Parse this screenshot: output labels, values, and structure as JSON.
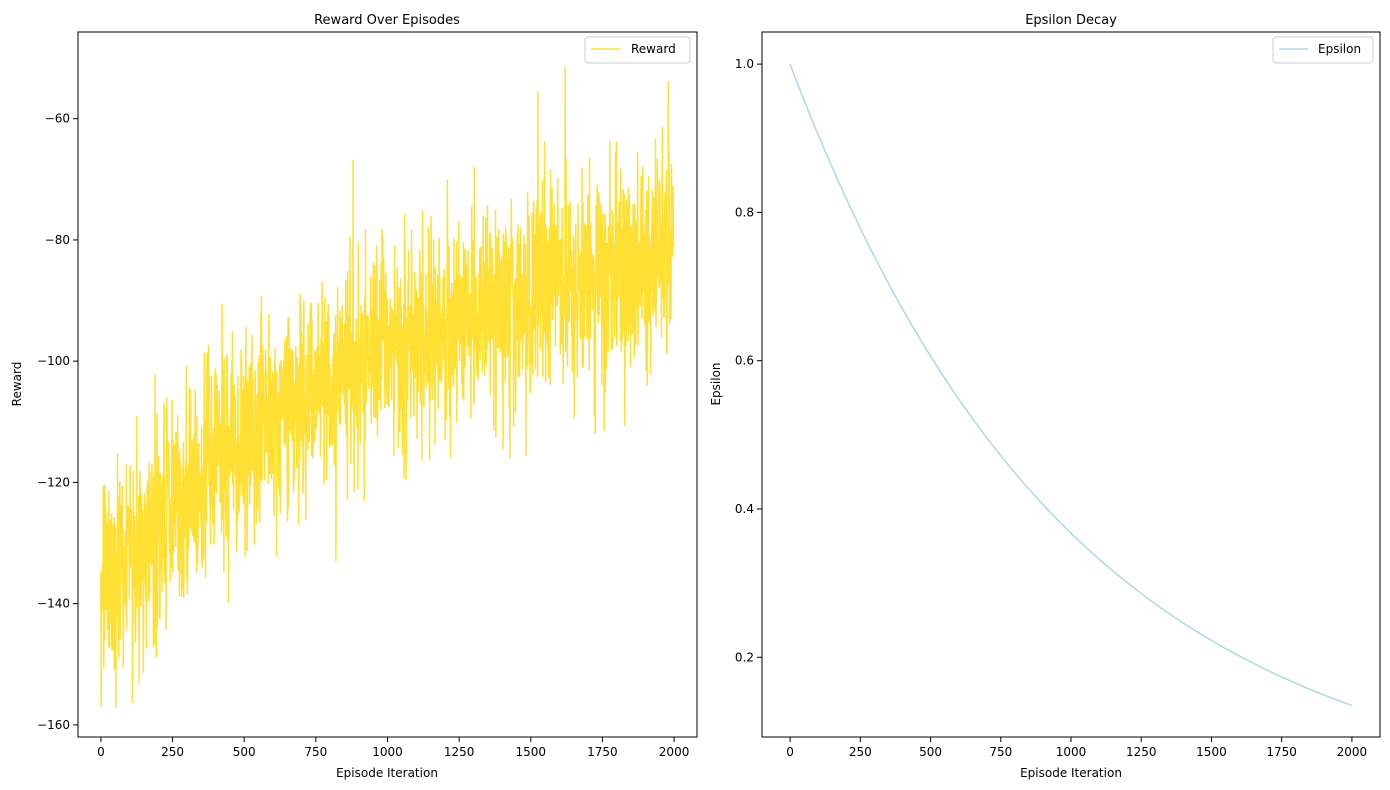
{
  "chart_data": [
    {
      "type": "line",
      "title": "Reward Over Episodes",
      "xlabel": "Episode Iteration",
      "ylabel": "Reward",
      "xlim": [
        -80,
        2080
      ],
      "ylim": [
        -162,
        -45.7
      ],
      "xticks": [
        0,
        250,
        500,
        750,
        1000,
        1250,
        1500,
        1750,
        2000
      ],
      "yticks": [
        -160,
        -140,
        -120,
        -100,
        -80,
        -60
      ],
      "ytick_labels": [
        "−160",
        "−140",
        "−120",
        "−100",
        "−80",
        "−60"
      ],
      "legend_position": "top-right",
      "grid": false,
      "series": [
        {
          "name": "Reward",
          "color": "#FFD700",
          "trend": {
            "x": [
              0,
              250,
              500,
              750,
              1000,
              1250,
              1500,
              1750,
              2000
            ],
            "y": [
              -138,
              -124,
              -113,
              -105,
              -98,
              -93,
              -89,
              -85,
              -83
            ]
          },
          "noise_std": 8.5,
          "n_points": 2000,
          "notable_points": [
            {
              "x": 8,
              "y": -120.5
            },
            {
              "x": 110,
              "y": -156.3
            },
            {
              "x": 125,
              "y": -109
            },
            {
              "x": 820,
              "y": -133
            },
            {
              "x": 1525,
              "y": -55.5
            },
            {
              "x": 1620,
              "y": -51.5
            },
            {
              "x": 1980,
              "y": -53.8
            }
          ]
        }
      ]
    },
    {
      "type": "line",
      "title": "Epsilon Decay",
      "xlabel": "Episode Iteration",
      "ylabel": "Epsilon",
      "xlim": [
        -100,
        2100
      ],
      "ylim": [
        0.0925,
        1.0433
      ],
      "xticks": [
        0,
        250,
        500,
        750,
        1000,
        1250,
        1500,
        1750,
        2000
      ],
      "yticks": [
        0.2,
        0.4,
        0.6,
        0.8,
        1.0
      ],
      "ytick_labels": [
        "0.2",
        "0.4",
        "0.6",
        "0.8",
        "1.0"
      ],
      "legend_position": "top-right",
      "grid": false,
      "series": [
        {
          "name": "Epsilon",
          "color": "#ADD8E6",
          "start_value": 1.0,
          "end_value": 0.135,
          "x_max": 2000
        }
      ]
    }
  ]
}
